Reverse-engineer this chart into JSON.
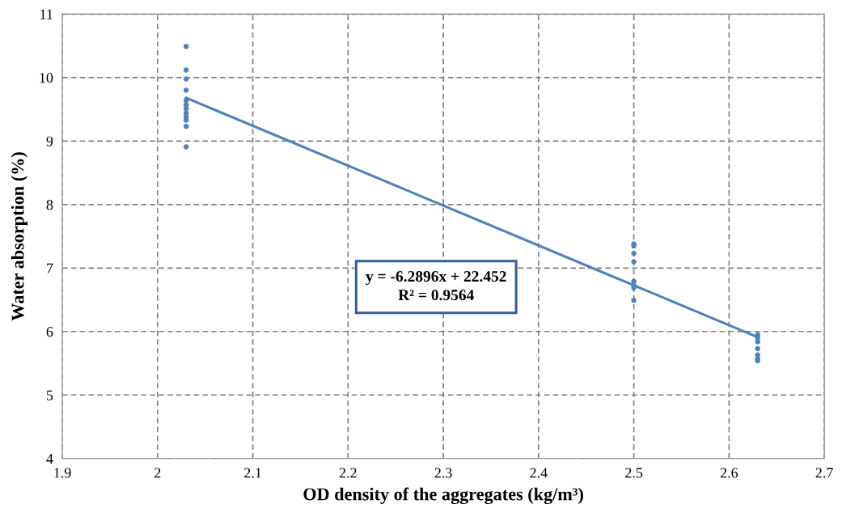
{
  "chart_data": {
    "type": "scatter",
    "xlabel": "OD density of the aggregates (kg/m³)",
    "ylabel": "Water absorption (%)",
    "xlim": [
      1.9,
      2.7
    ],
    "xticks": [
      1.9,
      2,
      2.1,
      2.2,
      2.3,
      2.4,
      2.5,
      2.6,
      2.7
    ],
    "ylim": [
      4,
      11
    ],
    "yticks": [
      4,
      5,
      6,
      7,
      8,
      9,
      10,
      11
    ],
    "grid": true,
    "series": [
      {
        "color": "#4f81bd",
        "marker": "circle",
        "x": [
          2.03,
          2.03,
          2.03,
          2.03,
          2.03,
          2.03,
          2.03,
          2.03,
          2.03,
          2.03,
          2.03,
          2.03,
          2.5,
          2.5,
          2.5,
          2.5,
          2.5,
          2.5,
          2.5,
          2.5,
          2.63,
          2.63,
          2.63,
          2.63,
          2.63,
          2.63,
          2.63
        ],
        "values": [
          10.49,
          10.12,
          9.98,
          9.8,
          9.64,
          9.57,
          9.51,
          9.44,
          9.38,
          9.33,
          9.23,
          8.91,
          7.38,
          7.35,
          7.23,
          7.1,
          6.79,
          6.73,
          6.69,
          6.49,
          5.95,
          5.9,
          5.84,
          5.73,
          5.63,
          5.57,
          5.54
        ]
      },
      {
        "type": "line",
        "color": "#4f81bd",
        "x": [
          2.03,
          2.63
        ],
        "values": [
          9.68,
          5.91
        ],
        "line_style": "solid"
      }
    ],
    "annotations": [
      "y = -6.2896x + 22.452\nR² = 0.9564"
    ]
  }
}
